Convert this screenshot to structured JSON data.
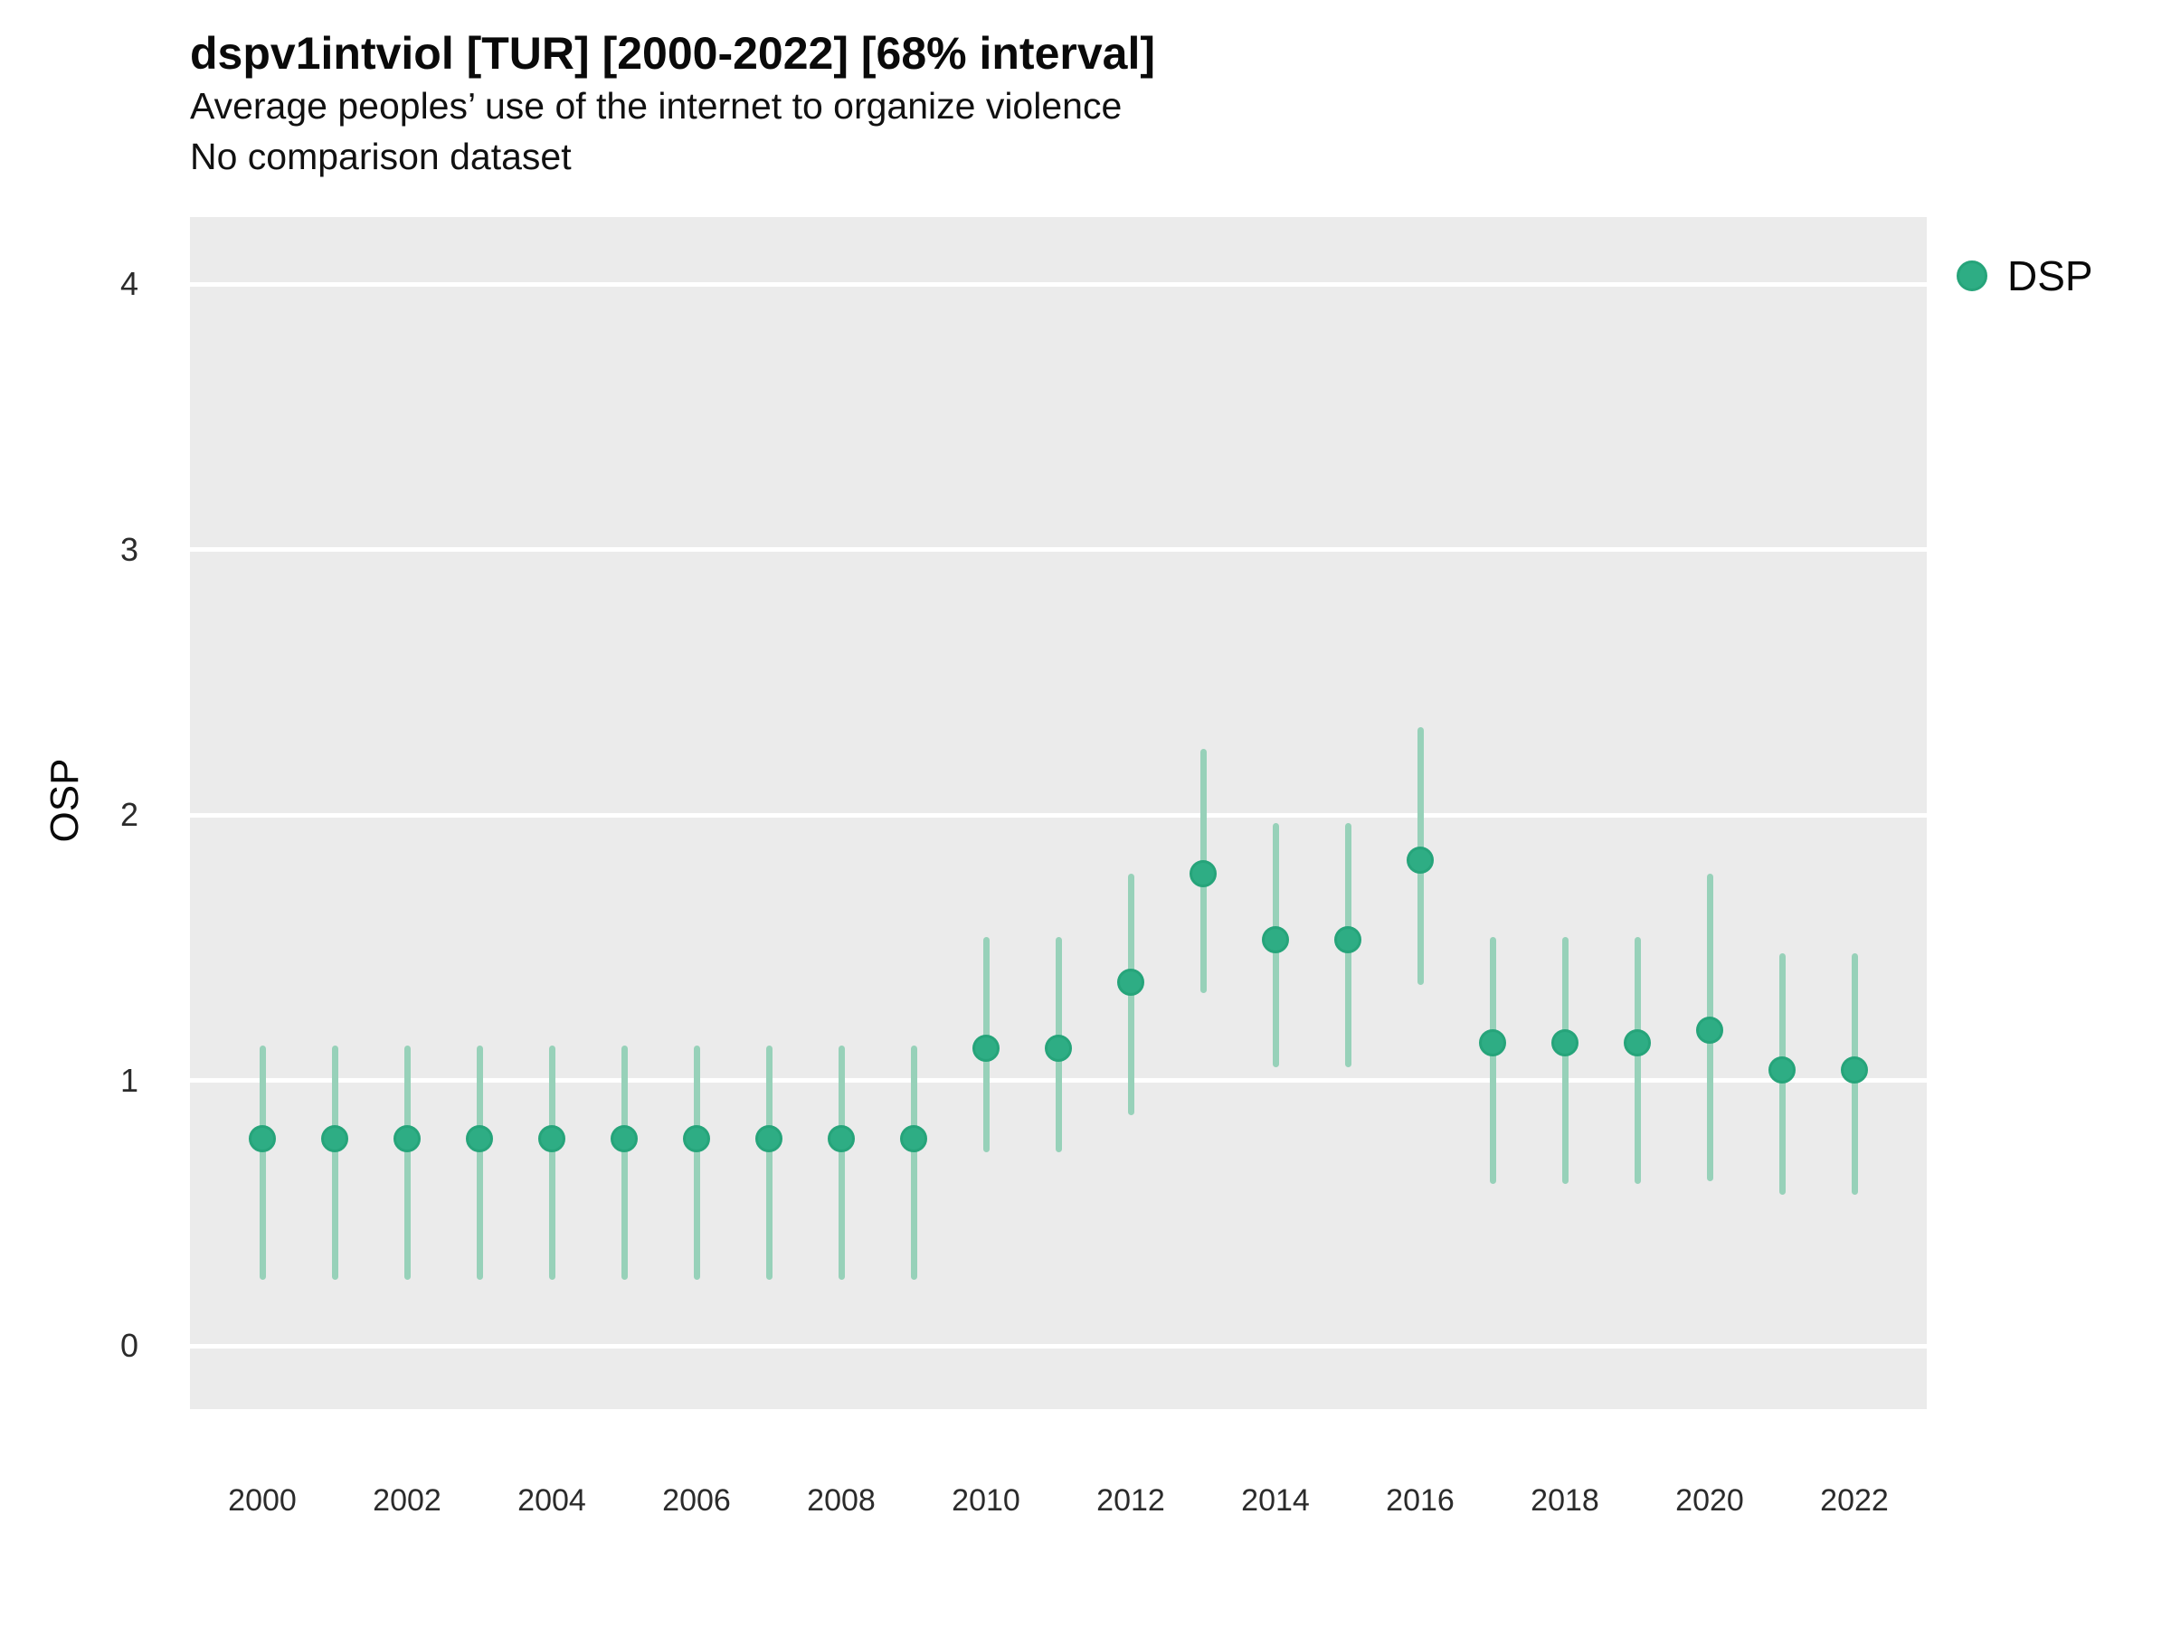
{
  "header": {
    "title": "dspv1intviol [TUR] [2000-2022] [68% interval]",
    "subtitle_line1": "Average peoples’ use of the internet to organize violence",
    "subtitle_line2": "No comparison dataset"
  },
  "legend": {
    "label": "DSP",
    "marker": "circle-icon",
    "marker_color": "#2ead84"
  },
  "colors": {
    "point_fill": "#2ead84",
    "point_border": "#26a47a",
    "interval_bar": "#97d1b9",
    "panel_background": "#ebebeb",
    "gridline": "#ffffff",
    "text": "#0a0a0a"
  },
  "chart_data": {
    "type": "pointrange",
    "title": "dspv1intviol [TUR] [2000-2022] [68% interval]",
    "subtitle": "Average peoples’ use of the internet to organize violence",
    "note": "No comparison dataset",
    "interval_level": "68%",
    "xlabel": "",
    "ylabel": "OSP",
    "xlim": [
      1999,
      2023
    ],
    "ylim": [
      -0.24,
      4.25
    ],
    "grid": "major-horizontal",
    "legend_position": "right",
    "y_ticks": [
      {
        "label": "4",
        "value": 4
      },
      {
        "label": "3",
        "value": 3
      },
      {
        "label": "2",
        "value": 2
      },
      {
        "label": "1",
        "value": 1
      },
      {
        "label": "0",
        "value": 0
      }
    ],
    "x_ticks": [
      {
        "label": "2000",
        "value": 2000
      },
      {
        "label": "2002",
        "value": 2002
      },
      {
        "label": "2004",
        "value": 2004
      },
      {
        "label": "2006",
        "value": 2006
      },
      {
        "label": "2008",
        "value": 2008
      },
      {
        "label": "2010",
        "value": 2010
      },
      {
        "label": "2012",
        "value": 2012
      },
      {
        "label": "2014",
        "value": 2014
      },
      {
        "label": "2016",
        "value": 2016
      },
      {
        "label": "2018",
        "value": 2018
      },
      {
        "label": "2020",
        "value": 2020
      },
      {
        "label": "2022",
        "value": 2022
      }
    ],
    "series": [
      {
        "name": "DSP",
        "points": [
          {
            "year": 2000,
            "est": 0.78,
            "lo": 0.25,
            "hi": 1.13
          },
          {
            "year": 2001,
            "est": 0.78,
            "lo": 0.25,
            "hi": 1.13
          },
          {
            "year": 2002,
            "est": 0.78,
            "lo": 0.25,
            "hi": 1.13
          },
          {
            "year": 2003,
            "est": 0.78,
            "lo": 0.25,
            "hi": 1.13
          },
          {
            "year": 2004,
            "est": 0.78,
            "lo": 0.25,
            "hi": 1.13
          },
          {
            "year": 2005,
            "est": 0.78,
            "lo": 0.25,
            "hi": 1.13
          },
          {
            "year": 2006,
            "est": 0.78,
            "lo": 0.25,
            "hi": 1.13
          },
          {
            "year": 2007,
            "est": 0.78,
            "lo": 0.25,
            "hi": 1.13
          },
          {
            "year": 2008,
            "est": 0.78,
            "lo": 0.25,
            "hi": 1.13
          },
          {
            "year": 2009,
            "est": 0.78,
            "lo": 0.25,
            "hi": 1.13
          },
          {
            "year": 2010,
            "est": 1.12,
            "lo": 0.73,
            "hi": 1.54
          },
          {
            "year": 2011,
            "est": 1.12,
            "lo": 0.73,
            "hi": 1.54
          },
          {
            "year": 2012,
            "est": 1.37,
            "lo": 0.87,
            "hi": 1.78
          },
          {
            "year": 2013,
            "est": 1.78,
            "lo": 1.33,
            "hi": 2.25
          },
          {
            "year": 2014,
            "est": 1.53,
            "lo": 1.05,
            "hi": 1.97
          },
          {
            "year": 2015,
            "est": 1.53,
            "lo": 1.05,
            "hi": 1.97
          },
          {
            "year": 2016,
            "est": 1.83,
            "lo": 1.36,
            "hi": 2.33
          },
          {
            "year": 2017,
            "est": 1.14,
            "lo": 0.61,
            "hi": 1.54
          },
          {
            "year": 2018,
            "est": 1.14,
            "lo": 0.61,
            "hi": 1.54
          },
          {
            "year": 2019,
            "est": 1.14,
            "lo": 0.61,
            "hi": 1.54
          },
          {
            "year": 2020,
            "est": 1.19,
            "lo": 0.62,
            "hi": 1.78
          },
          {
            "year": 2021,
            "est": 1.04,
            "lo": 0.57,
            "hi": 1.48
          },
          {
            "year": 2022,
            "est": 1.04,
            "lo": 0.57,
            "hi": 1.48
          }
        ]
      }
    ]
  }
}
